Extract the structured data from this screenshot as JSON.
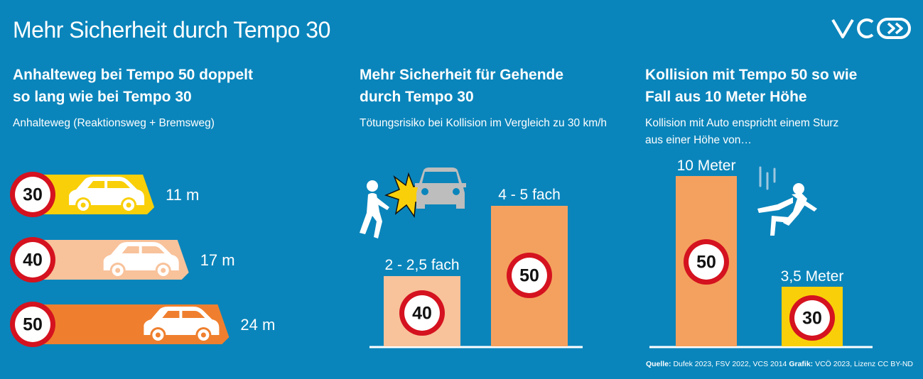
{
  "header": {
    "title": "Mehr Sicherheit durch Tempo 30",
    "logo_text": "VCÖ"
  },
  "colors": {
    "background": "#0a85bb",
    "yellow": "#f9cf09",
    "peach": "#f8c29b",
    "orange": "#ef7f2e",
    "bar_orange": "#f4a15f",
    "sign_red": "#d5121f"
  },
  "panels": [
    {
      "title": "Anhalteweg bei Tempo 50 doppelt\nso lang wie bei Tempo 30",
      "subtitle": "Anhalteweg (Reaktionsweg + Bremsweg)"
    },
    {
      "title": "Mehr Sicherheit für Gehende\ndurch Tempo 30",
      "subtitle": "Tötungsrisiko bei Kollision im Vergleich zu 30 km/h"
    },
    {
      "title": "Kollision mit Tempo 50 so wie\nFall aus 10 Meter Höhe",
      "subtitle": "Kollision mit Auto enspricht einem Sturz\naus einer Höhe von…"
    }
  ],
  "chart_data": [
    {
      "type": "bar",
      "orientation": "horizontal",
      "categories": [
        "30",
        "40",
        "50"
      ],
      "values": [
        11,
        17,
        24
      ],
      "value_labels": [
        "11 m",
        "17 m",
        "24 m"
      ],
      "colors": [
        "#f9cf09",
        "#f8c29b",
        "#ef7f2e"
      ]
    },
    {
      "type": "bar",
      "categories": [
        "40",
        "50"
      ],
      "values": [
        2.25,
        4.5
      ],
      "value_labels": [
        "2 - 2,5 fach",
        "4 - 5 fach"
      ],
      "colors": [
        "#f8c29b",
        "#f4a15f"
      ]
    },
    {
      "type": "bar",
      "categories": [
        "50",
        "30"
      ],
      "values": [
        10,
        3.5
      ],
      "value_labels": [
        "10 Meter",
        "3,5 Meter"
      ],
      "colors": [
        "#f4a15f",
        "#f9cf09"
      ]
    }
  ],
  "footer": {
    "quelle_label": "Quelle:",
    "quelle_text": " Dufek 2023, FSV 2022, VCS 2014 ",
    "grafik_label": "Grafik:",
    "grafik_text": " VCÖ 2023, Lizenz CC BY-ND"
  }
}
